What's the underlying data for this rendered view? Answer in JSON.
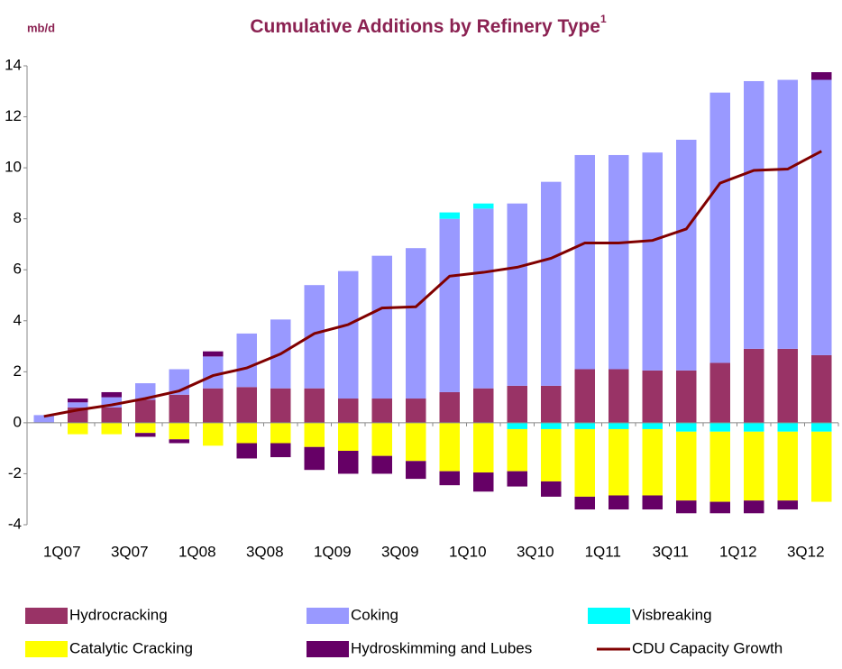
{
  "chart_data": {
    "type": "bar",
    "stacked": true,
    "title": "Cumulative Additions by Refinery Type",
    "title_superscript": "1",
    "y_label": "mb/d",
    "categories": [
      "1Q07",
      null,
      "3Q07",
      null,
      "1Q08",
      null,
      "3Q08",
      null,
      "1Q09",
      null,
      "3Q09",
      null,
      "1Q10",
      null,
      "3Q10",
      null,
      "1Q11",
      null,
      "3Q11",
      null,
      "1Q12",
      null,
      "3Q12",
      null
    ],
    "ylim": [
      -4,
      14
    ],
    "yticks": [
      -4,
      -2,
      0,
      2,
      4,
      6,
      8,
      10,
      12,
      14
    ],
    "series": [
      {
        "name": "Hydrocracking",
        "color": "#993366",
        "values": [
          0,
          0.6,
          0.6,
          0.9,
          1.1,
          1.35,
          1.4,
          1.35,
          1.35,
          0.95,
          0.95,
          0.95,
          1.2,
          1.35,
          1.45,
          1.45,
          2.1,
          2.1,
          2.05,
          2.05,
          2.35,
          2.9,
          2.9,
          2.65
        ]
      },
      {
        "name": "Coking",
        "color": "#9999ff",
        "values": [
          0.3,
          0.2,
          0.4,
          0.65,
          1.0,
          1.25,
          2.1,
          2.7,
          4.05,
          5.0,
          5.6,
          5.9,
          6.8,
          7.05,
          7.15,
          8.0,
          8.4,
          8.4,
          8.55,
          9.05,
          10.6,
          10.5,
          10.55,
          10.8
        ]
      },
      {
        "name": "Visbreaking",
        "color": "#00ffff",
        "values": [
          0,
          0,
          0,
          0,
          0,
          0,
          0,
          0,
          0,
          0,
          0,
          0,
          0.25,
          0.2,
          -0.25,
          -0.25,
          -0.25,
          -0.25,
          -0.25,
          -0.35,
          -0.35,
          -0.35,
          -0.35,
          -0.35
        ]
      },
      {
        "name": "Catalytic Cracking",
        "color": "#ffff00",
        "values": [
          0,
          -0.45,
          -0.45,
          -0.4,
          -0.65,
          -0.9,
          -0.8,
          -0.8,
          -0.95,
          -1.1,
          -1.3,
          -1.5,
          -1.9,
          -1.95,
          -1.65,
          -2.05,
          -2.65,
          -2.6,
          -2.6,
          -2.7,
          -2.75,
          -2.7,
          -2.7,
          -2.75
        ]
      },
      {
        "name": "Hydroskimming and Lubes",
        "color": "#660066",
        "values": [
          0,
          0.15,
          0.2,
          -0.15,
          -0.15,
          0.2,
          -0.6,
          -0.55,
          -0.9,
          -0.9,
          -0.7,
          -0.7,
          -0.55,
          -0.75,
          -0.6,
          -0.6,
          -0.5,
          -0.55,
          -0.55,
          -0.5,
          -0.45,
          -0.5,
          -0.35,
          0.3
        ]
      },
      {
        "name": "CDU Capacity Growth",
        "color": "#800000",
        "type": "line",
        "values": [
          0.25,
          0.5,
          0.7,
          0.95,
          1.25,
          1.85,
          2.15,
          2.7,
          3.5,
          3.85,
          4.5,
          4.55,
          5.75,
          5.9,
          6.1,
          6.45,
          7.05,
          7.05,
          7.15,
          7.6,
          9.4,
          9.9,
          9.95,
          10.65
        ]
      }
    ]
  }
}
